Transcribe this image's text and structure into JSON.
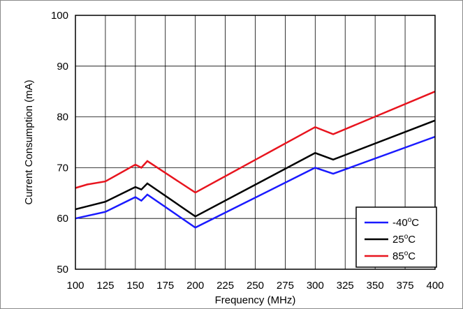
{
  "chart_data": {
    "type": "line",
    "xlabel": "Frequency (MHz)",
    "ylabel": "Current Consumption (mA)",
    "xlim": [
      100,
      400
    ],
    "ylim": [
      50,
      100
    ],
    "x_ticks": [
      100,
      125,
      150,
      175,
      200,
      225,
      250,
      275,
      300,
      325,
      350,
      375,
      400
    ],
    "y_ticks": [
      50,
      60,
      70,
      80,
      90,
      100
    ],
    "grid": true,
    "legend_position": "bottom-right",
    "series": [
      {
        "name": "-40°C",
        "name_base": "-40",
        "name_sup": "o",
        "name_unit": "C",
        "color": "#1a1aff",
        "x": [
          100,
          125,
          150,
          155,
          160,
          200,
          300,
          315,
          400
        ],
        "y": [
          60.0,
          61.3,
          64.2,
          63.5,
          64.7,
          58.2,
          70.0,
          68.8,
          76.1
        ]
      },
      {
        "name": "25°C",
        "name_base": "25",
        "name_sup": "o",
        "name_unit": "C",
        "color": "#000000",
        "x": [
          100,
          125,
          150,
          155,
          160,
          200,
          300,
          315,
          400
        ],
        "y": [
          61.8,
          63.3,
          66.2,
          65.7,
          66.9,
          60.4,
          72.9,
          71.6,
          79.3
        ]
      },
      {
        "name": "85°C",
        "name_base": "85",
        "name_sup": "o",
        "name_unit": "C",
        "color": "#e8141e",
        "x": [
          100,
          110,
          125,
          150,
          155,
          160,
          200,
          300,
          315,
          400
        ],
        "y": [
          66.0,
          66.7,
          67.3,
          70.6,
          70.0,
          71.3,
          65.1,
          78.0,
          76.6,
          85.0
        ]
      }
    ]
  }
}
